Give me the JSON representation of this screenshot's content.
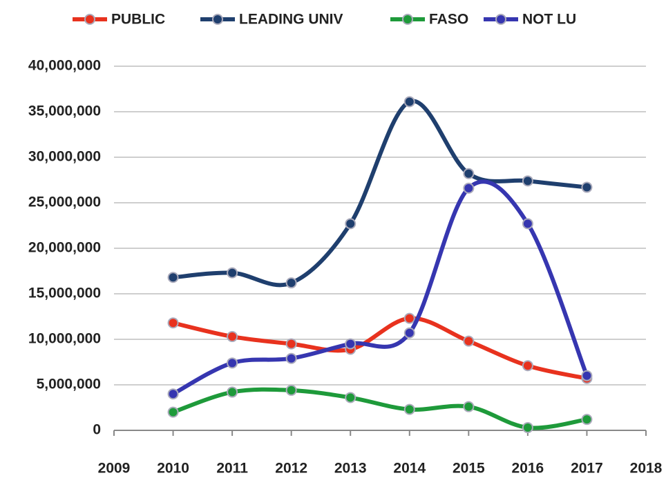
{
  "chart_data": {
    "type": "line",
    "x": [
      2010,
      2011,
      2012,
      2013,
      2014,
      2015,
      2016,
      2017
    ],
    "series": [
      {
        "name": "PUBLIC",
        "color": "#e8321e",
        "values": [
          11800000,
          10300000,
          9500000,
          8900000,
          12300000,
          9800000,
          7100000,
          5700000
        ]
      },
      {
        "name": "LEADING UNIV",
        "color": "#1f3f6e",
        "values": [
          16800000,
          17300000,
          16200000,
          22700000,
          36100000,
          28200000,
          27400000,
          26700000
        ]
      },
      {
        "name": "FASO",
        "color": "#1e9a3a",
        "values": [
          2000000,
          4200000,
          4400000,
          3600000,
          2300000,
          2600000,
          300000,
          1200000
        ]
      },
      {
        "name": "NOT LU",
        "color": "#3636b0",
        "values": [
          4000000,
          7400000,
          7900000,
          9500000,
          10700000,
          26600000,
          22700000,
          6000000
        ]
      }
    ],
    "xlim": [
      2009,
      2018
    ],
    "xticks": [
      2009,
      2010,
      2011,
      2012,
      2013,
      2014,
      2015,
      2016,
      2017,
      2018
    ],
    "ylim": [
      0,
      40000000
    ],
    "yticks": [
      0,
      {
        "value": 5000000,
        "label": "5,000,000"
      },
      {
        "value": 10000000,
        "label": "10,000,000"
      },
      {
        "value": 15000000,
        "label": "15,000,000"
      },
      {
        "value": 20000000,
        "label": "20,000,000"
      },
      {
        "value": 25000000,
        "label": "25,000,000"
      },
      {
        "value": 30000000,
        "label": "30,000,000"
      },
      {
        "value": 35000000,
        "label": "35,000,000"
      },
      {
        "value": 40000000,
        "label": "40,000,000"
      }
    ],
    "grid": true,
    "legend": "top"
  }
}
